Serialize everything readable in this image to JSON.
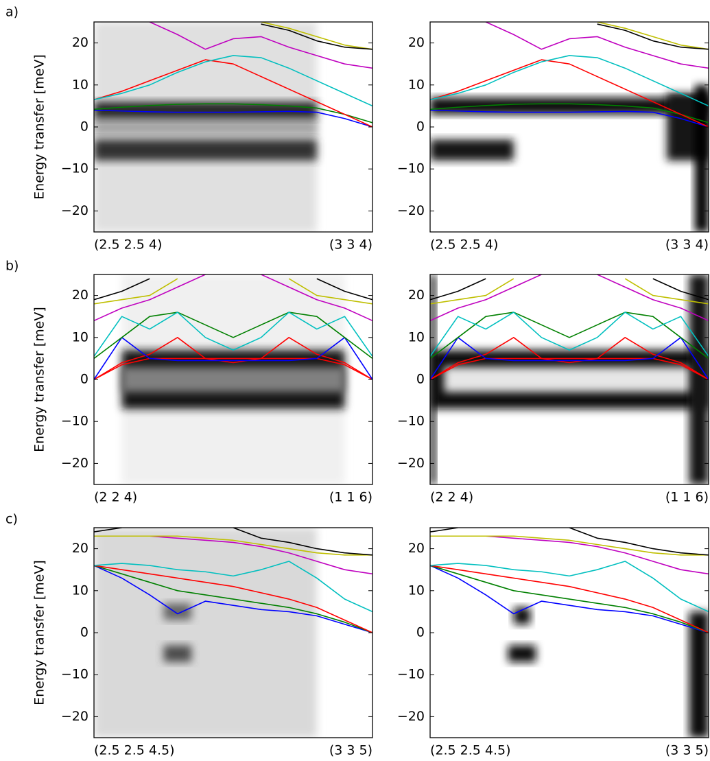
{
  "figure_labels": [
    "a)",
    "b)",
    "c)"
  ],
  "chart_data": [
    {
      "type": "line",
      "ylabel": "Energy transfer [meV]",
      "xlim": [
        0,
        1
      ],
      "xticks": [
        {
          "value": 0,
          "label": "(2.5 2.5 4)"
        },
        {
          "value": 1,
          "label": "(3 3 4)"
        }
      ],
      "ylim": [
        -25,
        25
      ],
      "yticks": [
        {
          "value": -20,
          "label": "−20"
        },
        {
          "value": -10,
          "label": "−10"
        },
        0,
        10,
        20
      ],
      "x": [
        0,
        0.1,
        0.2,
        0.3,
        0.4,
        0.5,
        0.6,
        0.7,
        0.8,
        0.9,
        1
      ],
      "heatmap": [
        {
          "x": [
            0,
            0.8
          ],
          "y": [
            -25,
            25
          ],
          "level": 0.12
        },
        {
          "x": [
            0,
            0.8
          ],
          "y": [
            -2,
            2
          ],
          "level": 0.35
        },
        {
          "x": [
            0,
            0.8
          ],
          "y": [
            -8,
            -3
          ],
          "level": 0.8
        },
        {
          "x": [
            0,
            0.8
          ],
          "y": [
            2,
            6
          ],
          "level": 0.85
        }
      ],
      "series": [
        {
          "color": "#0000ff",
          "values": [
            4,
            3.8,
            3.6,
            3.5,
            3.5,
            3.5,
            3.6,
            3.7,
            3.5,
            2,
            0
          ]
        },
        {
          "color": "#008000",
          "values": [
            4.2,
            4.7,
            5.1,
            5.4,
            5.5,
            5.5,
            5.3,
            5,
            4.5,
            3,
            1
          ]
        },
        {
          "color": "#ff0000",
          "values": [
            6.5,
            8.5,
            11,
            13.5,
            16,
            15,
            12,
            9,
            6,
            3,
            0
          ]
        },
        {
          "color": "#00bfbf",
          "values": [
            6.5,
            8,
            10,
            13,
            15.5,
            17,
            16.5,
            14,
            11,
            8,
            5
          ]
        },
        {
          "color": "#bf00bf",
          "values": [
            null,
            null,
            25,
            22,
            18.5,
            21,
            21.5,
            19,
            17,
            15,
            14
          ]
        },
        {
          "color": "#bfbf00",
          "values": [
            null,
            null,
            null,
            null,
            null,
            null,
            25,
            23.5,
            21.5,
            19.5,
            18.5
          ]
        },
        {
          "color": "#000000",
          "values": [
            null,
            null,
            null,
            null,
            null,
            null,
            24.5,
            23,
            20.5,
            19,
            18.5
          ]
        }
      ]
    },
    {
      "type": "line",
      "xlim": [
        0,
        1
      ],
      "xticks": [
        {
          "value": 0,
          "label": "(2.5 2.5 4)"
        },
        {
          "value": 1,
          "label": "(3 3 4)"
        }
      ],
      "ylim": [
        -25,
        25
      ],
      "yticks": [
        {
          "value": -20,
          "label": "−20"
        },
        {
          "value": -10,
          "label": "−10"
        },
        0,
        10,
        20
      ],
      "x": [
        0,
        0.1,
        0.2,
        0.3,
        0.4,
        0.5,
        0.6,
        0.7,
        0.8,
        0.9,
        1
      ],
      "heatmap": [
        {
          "x": [
            0,
            0.3
          ],
          "y": [
            -8,
            -3
          ],
          "level": 0.9
        },
        {
          "x": [
            0,
            1
          ],
          "y": [
            3,
            7
          ],
          "level": 0.95
        },
        {
          "x": [
            0.85,
            1
          ],
          "y": [
            -8,
            8
          ],
          "level": 0.9
        },
        {
          "x": [
            0.95,
            1
          ],
          "y": [
            -25,
            10
          ],
          "level": 1
        }
      ],
      "series": [
        {
          "color": "#0000ff",
          "values": [
            4,
            3.8,
            3.6,
            3.5,
            3.5,
            3.5,
            3.6,
            3.7,
            3.5,
            2,
            0
          ]
        },
        {
          "color": "#008000",
          "values": [
            4.2,
            4.7,
            5.1,
            5.4,
            5.5,
            5.5,
            5.3,
            5,
            4.5,
            3,
            1
          ]
        },
        {
          "color": "#ff0000",
          "values": [
            6.5,
            8.5,
            11,
            13.5,
            16,
            15,
            12,
            9,
            6,
            3,
            0
          ]
        },
        {
          "color": "#00bfbf",
          "values": [
            6.5,
            8,
            10,
            13,
            15.5,
            17,
            16.5,
            14,
            11,
            8,
            5
          ]
        },
        {
          "color": "#bf00bf",
          "values": [
            null,
            null,
            25,
            22,
            18.5,
            21,
            21.5,
            19,
            17,
            15,
            14
          ]
        },
        {
          "color": "#bfbf00",
          "values": [
            null,
            null,
            null,
            null,
            null,
            null,
            25,
            23.5,
            21.5,
            19.5,
            18.5
          ]
        },
        {
          "color": "#000000",
          "values": [
            null,
            null,
            null,
            null,
            null,
            null,
            24.5,
            23,
            20.5,
            19,
            18.5
          ]
        }
      ]
    },
    {
      "type": "line",
      "ylabel": "Energy transfer [meV]",
      "xlim": [
        0,
        1
      ],
      "xticks": [
        {
          "value": 0,
          "label": "(2 2 4)"
        },
        {
          "value": 1,
          "label": "(1 1 6)"
        }
      ],
      "ylim": [
        -25,
        25
      ],
      "yticks": [
        {
          "value": -20,
          "label": "−20"
        },
        {
          "value": -10,
          "label": "−10"
        },
        0,
        10,
        20
      ],
      "x": [
        0,
        0.1,
        0.2,
        0.3,
        0.4,
        0.5,
        0.6,
        0.7,
        0.8,
        0.9,
        1
      ],
      "heatmap": [
        {
          "x": [
            0.1,
            0.9
          ],
          "y": [
            -25,
            25
          ],
          "level": 0.06
        },
        {
          "x": [
            0.1,
            0.9
          ],
          "y": [
            -7,
            7
          ],
          "level": 0.9
        },
        {
          "x": [
            0.1,
            0.9
          ],
          "y": [
            -3,
            3
          ],
          "level": 0.5
        }
      ],
      "series": [
        {
          "color": "#ff0000",
          "values": [
            0,
            3.5,
            5,
            5,
            5,
            5,
            5,
            5,
            5,
            3.5,
            0
          ]
        },
        {
          "color": "#ff0000",
          "values": [
            0,
            4,
            6,
            10,
            5,
            4,
            5,
            10,
            6,
            4,
            0
          ]
        },
        {
          "color": "#0000ff",
          "values": [
            0,
            10,
            5,
            4.5,
            4.5,
            4.5,
            4.5,
            4.5,
            5,
            10,
            0
          ]
        },
        {
          "color": "#008000",
          "values": [
            5,
            10,
            15,
            16,
            13,
            10,
            13,
            16,
            15,
            10,
            5
          ]
        },
        {
          "color": "#00bfbf",
          "values": [
            5.5,
            15,
            12,
            16,
            10,
            7,
            10,
            16,
            12,
            15,
            5.5
          ]
        },
        {
          "color": "#bf00bf",
          "values": [
            14,
            17,
            19,
            22,
            25,
            null,
            25,
            22,
            19,
            17,
            14
          ]
        },
        {
          "color": "#bfbf00",
          "values": [
            18,
            19,
            20,
            24,
            null,
            null,
            null,
            24,
            20,
            19,
            18
          ]
        },
        {
          "color": "#000000",
          "values": [
            19,
            21,
            24,
            null,
            null,
            null,
            null,
            null,
            24,
            21,
            19
          ]
        }
      ]
    },
    {
      "type": "line",
      "xlim": [
        0,
        1
      ],
      "xticks": [
        {
          "value": 0,
          "label": "(2 2 4)"
        },
        {
          "value": 1,
          "label": "(1 1 6)"
        }
      ],
      "ylim": [
        -25,
        25
      ],
      "yticks": [
        {
          "value": -20,
          "label": "−20"
        },
        {
          "value": -10,
          "label": "−10"
        },
        0,
        10,
        20
      ],
      "x": [
        0,
        0.1,
        0.2,
        0.3,
        0.4,
        0.5,
        0.6,
        0.7,
        0.8,
        0.9,
        1
      ],
      "heatmap": [
        {
          "x": [
            0,
            1
          ],
          "y": [
            -7,
            7
          ],
          "level": 0.95
        },
        {
          "x": [
            0.05,
            0.95
          ],
          "y": [
            -3,
            3
          ],
          "level": 0.1
        },
        {
          "x": [
            0,
            0.02
          ],
          "y": [
            -25,
            25
          ],
          "level": 0.95
        },
        {
          "x": [
            0.93,
            1
          ],
          "y": [
            -25,
            25
          ],
          "level": 0.9
        }
      ],
      "series": [
        {
          "color": "#ff0000",
          "values": [
            0,
            3.5,
            5,
            5,
            5,
            5,
            5,
            5,
            5,
            3.5,
            0
          ]
        },
        {
          "color": "#ff0000",
          "values": [
            0,
            4,
            6,
            10,
            5,
            4,
            5,
            10,
            6,
            4,
            0
          ]
        },
        {
          "color": "#0000ff",
          "values": [
            0,
            10,
            5,
            4.5,
            4.5,
            4.5,
            4.5,
            4.5,
            5,
            10,
            0
          ]
        },
        {
          "color": "#008000",
          "values": [
            5,
            10,
            15,
            16,
            13,
            10,
            13,
            16,
            15,
            10,
            5
          ]
        },
        {
          "color": "#00bfbf",
          "values": [
            5.5,
            15,
            12,
            16,
            10,
            7,
            10,
            16,
            12,
            15,
            5.5
          ]
        },
        {
          "color": "#bf00bf",
          "values": [
            14,
            17,
            19,
            22,
            25,
            null,
            25,
            22,
            19,
            17,
            14
          ]
        },
        {
          "color": "#bfbf00",
          "values": [
            18,
            19,
            20,
            24,
            null,
            null,
            null,
            24,
            20,
            19,
            18
          ]
        },
        {
          "color": "#000000",
          "values": [
            19,
            21,
            24,
            null,
            null,
            null,
            null,
            null,
            24,
            21,
            19
          ]
        }
      ]
    },
    {
      "type": "line",
      "ylabel": "Energy transfer [meV]",
      "xlim": [
        0,
        1
      ],
      "xticks": [
        {
          "value": 0,
          "label": "(2.5 2.5 4.5)"
        },
        {
          "value": 1,
          "label": "(3 3 5)"
        }
      ],
      "ylim": [
        -25,
        25
      ],
      "yticks": [
        {
          "value": -20,
          "label": "−20"
        },
        {
          "value": -10,
          "label": "−10"
        },
        0,
        10,
        20
      ],
      "x": [
        0,
        0.1,
        0.2,
        0.3,
        0.4,
        0.5,
        0.6,
        0.7,
        0.8,
        0.9,
        1
      ],
      "heatmap": [
        {
          "x": [
            0,
            0.8
          ],
          "y": [
            -25,
            25
          ],
          "level": 0.15
        },
        {
          "x": [
            0.25,
            0.35
          ],
          "y": [
            -7,
            -3
          ],
          "level": 0.7
        },
        {
          "x": [
            0.25,
            0.35
          ],
          "y": [
            3,
            7
          ],
          "level": 0.6
        }
      ],
      "series": [
        {
          "color": "#0000ff",
          "values": [
            16,
            13,
            9,
            4.5,
            7.5,
            6.5,
            5.5,
            5,
            4,
            2,
            0
          ]
        },
        {
          "color": "#008000",
          "values": [
            16,
            14,
            12,
            10,
            9,
            8,
            7,
            6,
            4.5,
            2.5,
            0
          ]
        },
        {
          "color": "#ff0000",
          "values": [
            16,
            15,
            14,
            13,
            12,
            11,
            9.5,
            8,
            6,
            3,
            0
          ]
        },
        {
          "color": "#00bfbf",
          "values": [
            16,
            16.5,
            16,
            15,
            14.5,
            13.5,
            15,
            17,
            13,
            8,
            5
          ]
        },
        {
          "color": "#bf00bf",
          "values": [
            23,
            23,
            23,
            22.5,
            22,
            21.5,
            20.5,
            19,
            17,
            15,
            14
          ]
        },
        {
          "color": "#bfbf00",
          "values": [
            23,
            23,
            23,
            23,
            22.5,
            22,
            21,
            20,
            19,
            18.5,
            18.5
          ]
        },
        {
          "color": "#000000",
          "values": [
            24,
            25,
            null,
            null,
            null,
            25,
            22.5,
            21.5,
            20,
            19,
            18.5
          ]
        }
      ]
    },
    {
      "type": "line",
      "xlim": [
        0,
        1
      ],
      "xticks": [
        {
          "value": 0,
          "label": "(2.5 2.5 4.5)"
        },
        {
          "value": 1,
          "label": "(3 3 5)"
        }
      ],
      "ylim": [
        -25,
        25
      ],
      "yticks": [
        {
          "value": -20,
          "label": "−20"
        },
        {
          "value": -10,
          "label": "−10"
        },
        0,
        10,
        20
      ],
      "x": [
        0,
        0.1,
        0.2,
        0.3,
        0.4,
        0.5,
        0.6,
        0.7,
        0.8,
        0.9,
        1
      ],
      "heatmap": [
        {
          "x": [
            0.28,
            0.38
          ],
          "y": [
            -7,
            -3
          ],
          "level": 0.95
        },
        {
          "x": [
            0.3,
            0.36
          ],
          "y": [
            2,
            6
          ],
          "level": 0.95
        },
        {
          "x": [
            0.93,
            1
          ],
          "y": [
            -25,
            5
          ],
          "level": 0.95
        }
      ],
      "series": [
        {
          "color": "#0000ff",
          "values": [
            16,
            13,
            9,
            4.5,
            7.5,
            6.5,
            5.5,
            5,
            4,
            2,
            0
          ]
        },
        {
          "color": "#008000",
          "values": [
            16,
            14,
            12,
            10,
            9,
            8,
            7,
            6,
            4.5,
            2.5,
            0
          ]
        },
        {
          "color": "#ff0000",
          "values": [
            16,
            15,
            14,
            13,
            12,
            11,
            9.5,
            8,
            6,
            3,
            0
          ]
        },
        {
          "color": "#00bfbf",
          "values": [
            16,
            16.5,
            16,
            15,
            14.5,
            13.5,
            15,
            17,
            13,
            8,
            5
          ]
        },
        {
          "color": "#bf00bf",
          "values": [
            23,
            23,
            23,
            22.5,
            22,
            21.5,
            20.5,
            19,
            17,
            15,
            14
          ]
        },
        {
          "color": "#bfbf00",
          "values": [
            23,
            23,
            23,
            23,
            22.5,
            22,
            21,
            20,
            19,
            18.5,
            18.5
          ]
        },
        {
          "color": "#000000",
          "values": [
            24,
            25,
            null,
            null,
            null,
            25,
            22.5,
            21.5,
            20,
            19,
            18.5
          ]
        }
      ]
    }
  ]
}
